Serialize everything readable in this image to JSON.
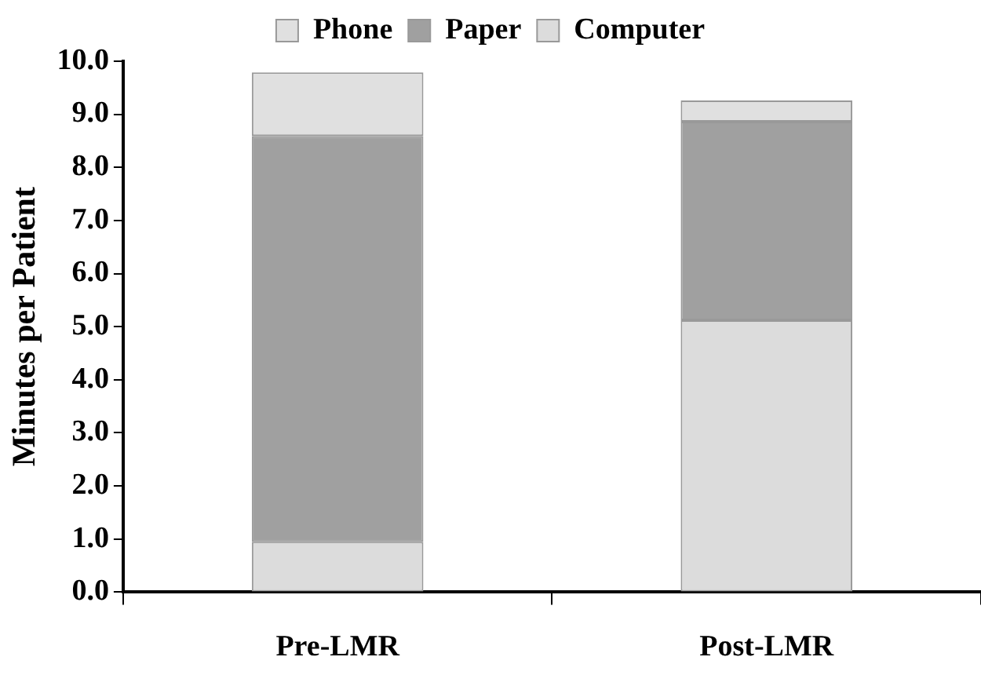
{
  "chart_data": {
    "type": "bar",
    "stacked": true,
    "ylabel": "Minutes per Patient",
    "categories": [
      "Pre-LMR",
      "Post-LMR"
    ],
    "series": [
      {
        "name": "Computer",
        "color": "#dcdcdc",
        "values": [
          0.95,
          5.12
        ]
      },
      {
        "name": "Paper",
        "color": "#a0a0a0",
        "values": [
          7.64,
          3.74
        ]
      },
      {
        "name": "Phone",
        "color": "#e0e0e0",
        "values": [
          1.2,
          0.4
        ]
      }
    ],
    "ylim": [
      0,
      10
    ],
    "yticks": [
      {
        "value": 0,
        "label": "0.0"
      },
      {
        "value": 1,
        "label": "1.0"
      },
      {
        "value": 2,
        "label": "2.0"
      },
      {
        "value": 3,
        "label": "3.0"
      },
      {
        "value": 4,
        "label": "4.0"
      },
      {
        "value": 5,
        "label": "5.0"
      },
      {
        "value": 6,
        "label": "6.0"
      },
      {
        "value": 7,
        "label": "7.0"
      },
      {
        "value": 8,
        "label": "8.0"
      },
      {
        "value": 9,
        "label": "9.0"
      },
      {
        "value": 10,
        "label": "10.0"
      }
    ],
    "grid": false,
    "legend": "top"
  }
}
